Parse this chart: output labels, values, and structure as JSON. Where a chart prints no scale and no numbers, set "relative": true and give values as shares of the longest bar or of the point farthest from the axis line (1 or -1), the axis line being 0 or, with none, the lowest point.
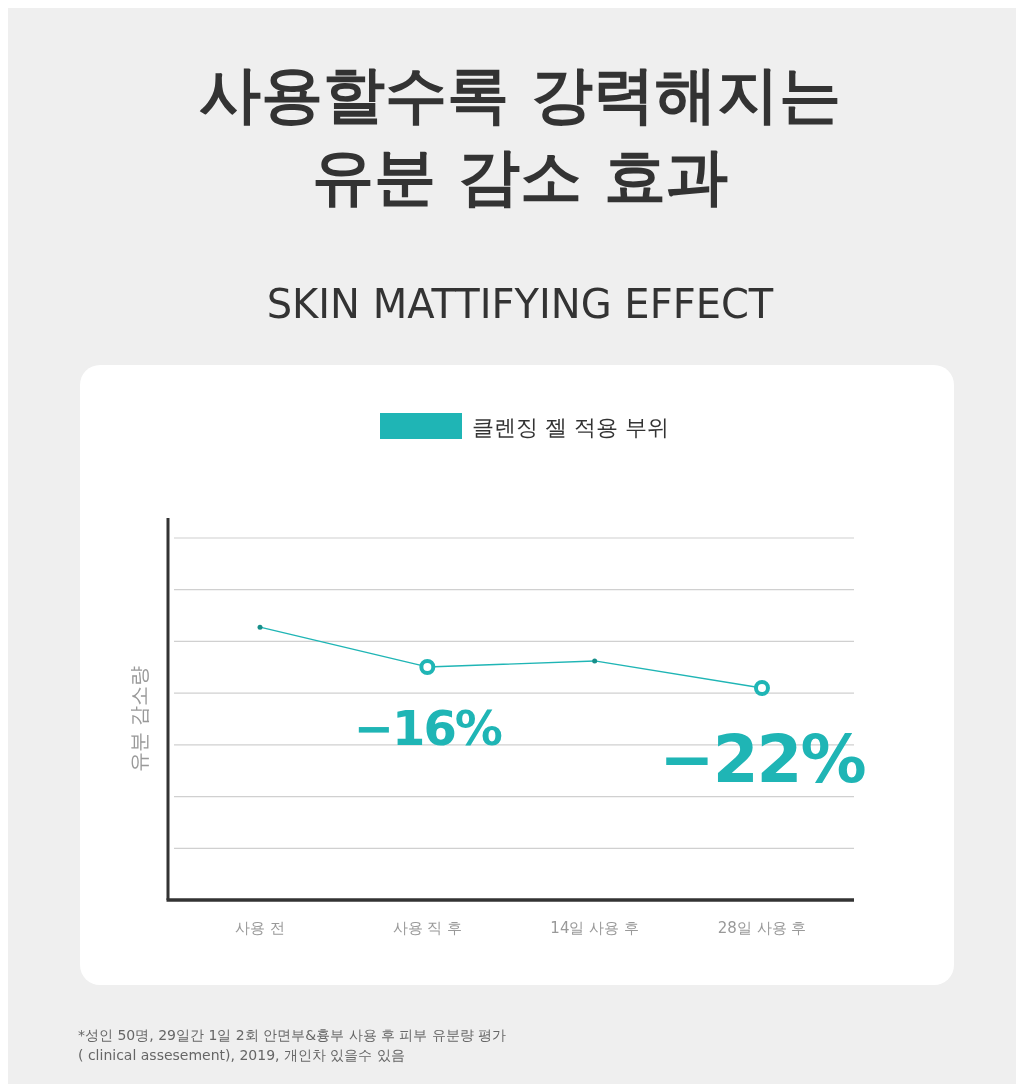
{
  "chart_data": {
    "type": "line",
    "title": "사용할수록 강력해지는\n유분 감소 효과",
    "subtitle": "SKIN MATTIFYING EFFECT",
    "ylabel": "유분 감소량",
    "relative": true,
    "categories": [
      "사용 전",
      "사용 직 후",
      "14일 사용 후",
      "28일 사용 후"
    ],
    "series": [
      {
        "name": "클렌징 젤 적용 부위",
        "color": "#1fb5b5",
        "values": [
          1,
          0.854,
          0.876,
          0.777
        ]
      }
    ],
    "grid": true,
    "legend": "top",
    "marker": "circle",
    "line_style": "solid",
    "annotations": [
      "−16%",
      "−22%",
      "*성인 50명, 29일간 1일 2회 안면부&흉부 사용 후 피부 유분량 평가\n( clinical assesement), 2019, 개인차 있을수 있음"
    ]
  }
}
